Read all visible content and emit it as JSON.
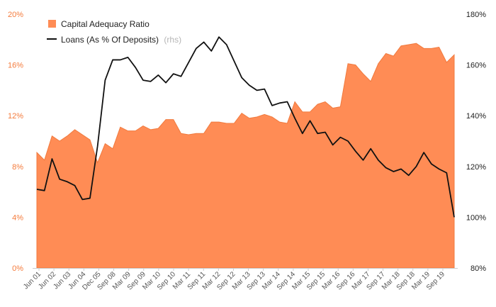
{
  "chart_data": {
    "type": "area",
    "y_left": {
      "ticks": [
        "0%",
        "4%",
        "8%",
        "12%",
        "16%",
        "20%"
      ],
      "min": 0,
      "max": 20
    },
    "y_right": {
      "ticks": [
        "80%",
        "100%",
        "120%",
        "140%",
        "160%",
        "180%"
      ],
      "min": 80,
      "max": 180
    },
    "x_tick_labels": [
      "Jun 01",
      "Jun 02",
      "Jun 03",
      "Jun 04",
      "Dec 05",
      "Sep 08",
      "Mar 09",
      "Sep 09",
      "Mar 10",
      "Sep 10",
      "Mar 11",
      "Sep 11",
      "Mar 12",
      "Sep 12",
      "Mar 13",
      "Sep 13",
      "Mar 14",
      "Sep 14",
      "Mar 15",
      "Sep 15",
      "Mar 16",
      "Sep 16",
      "Mar 17",
      "Sep 17",
      "Mar 18",
      "Sep 18",
      "Mar 19",
      "Sep 19"
    ],
    "legend": {
      "position": "top-left",
      "area_label": "Capital Adequacy Ratio",
      "line_label": "Loans (As % Of Deposits)",
      "line_suffix": "(rhs)"
    },
    "colors": {
      "area": "#ff8c55",
      "area_edge": "#f07a3e",
      "line": "#111111",
      "left_axis": "#f47b3c",
      "right_axis": "#222222"
    },
    "grid": false,
    "series": [
      {
        "name": "Capital Adequacy Ratio",
        "axis": "left",
        "values": [
          9.1,
          8.5,
          10.4,
          10.0,
          10.4,
          10.9,
          10.5,
          10.1,
          8.3,
          9.8,
          9.4,
          11.1,
          10.8,
          10.8,
          11.2,
          10.9,
          11.0,
          11.7,
          11.7,
          10.6,
          10.5,
          10.6,
          10.6,
          11.5,
          11.5,
          11.4,
          11.4,
          12.2,
          11.8,
          11.9,
          12.1,
          11.9,
          11.5,
          11.4,
          13.1,
          12.3,
          12.3,
          12.9,
          13.1,
          12.6,
          12.7,
          16.1,
          16.0,
          15.3,
          14.7,
          16.1,
          16.9,
          16.7,
          17.5,
          17.6,
          17.7,
          17.3,
          17.3,
          17.4,
          16.2,
          16.8
        ]
      },
      {
        "name": "Loans (As % Of Deposits)",
        "axis": "right",
        "values": [
          111,
          110.5,
          123,
          115,
          114,
          112.5,
          107,
          107.5,
          128,
          154,
          162,
          162,
          163,
          159,
          154,
          153.5,
          156,
          153,
          156.5,
          155.5,
          161,
          166.5,
          169,
          165.5,
          171,
          168,
          161.5,
          155,
          152,
          150,
          150.5,
          144,
          145,
          145.5,
          139,
          133,
          138,
          133,
          133.5,
          128.5,
          131.5,
          130,
          126,
          122.5,
          127,
          122.5,
          119.5,
          118,
          119,
          116.5,
          120,
          125.5,
          121,
          119,
          117.5,
          100
        ]
      }
    ]
  }
}
